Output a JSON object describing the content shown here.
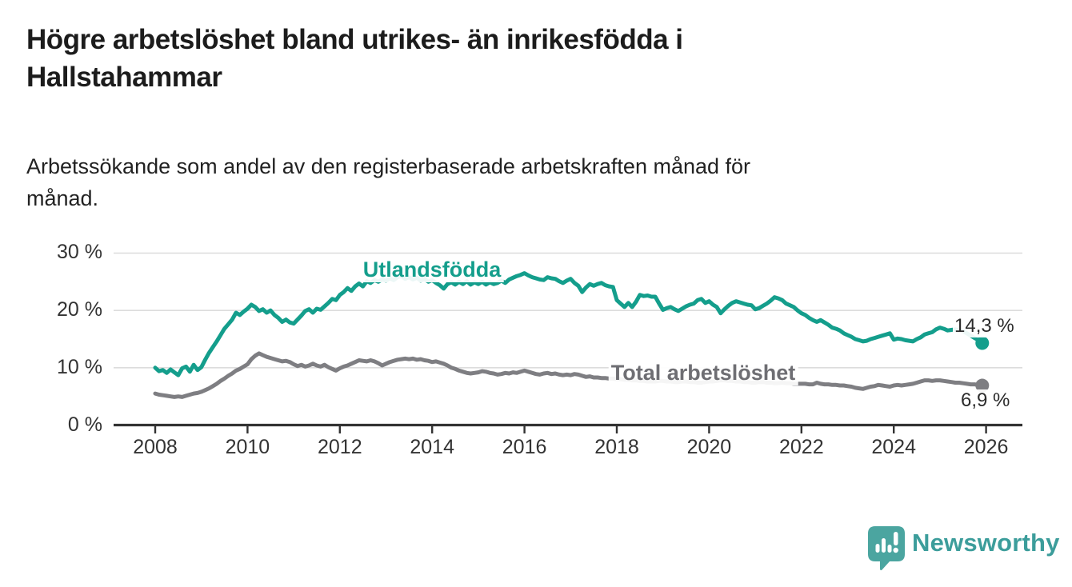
{
  "header": {
    "title_line1": "Högre arbetslöshet bland utrikes- än inrikesfödda i",
    "title_line2": "Hallstahammar",
    "subtitle_line1": "Arbetssökande som andel av den registerbaserade arbetskraften månad för",
    "subtitle_line2": "månad."
  },
  "footer": {
    "brand": "Newsworthy",
    "logo_icon": "speech-bubble-with-bar-chart-and-exclamation"
  },
  "colors": {
    "series_utlandsfodda": "#149e8c",
    "series_total": "#7e7e82",
    "axis": "#333333",
    "gridline": "#dcdcdc",
    "title_text": "#1c1c1c",
    "logo_teal": "#4ba5a0"
  },
  "chart_data": {
    "type": "line",
    "title": "Högre arbetslöshet bland utrikes- än inrikesfödda i Hallstahammar",
    "subtitle": "Arbetssökande som andel av den registerbaserade arbetskraften månad för månad.",
    "xlabel": "",
    "ylabel": "",
    "x_unit": "år (månadsvisa värden)",
    "y_unit": "%",
    "x_start": 2008.0,
    "x_step_years": 0.083333,
    "xlim": [
      2007.1,
      2026.9
    ],
    "ylim": [
      0,
      32
    ],
    "grid": "horizontal",
    "legend_position": "inline-labels",
    "yticks": [
      {
        "label": "30 %",
        "value": 30
      },
      {
        "label": "20 %",
        "value": 20
      },
      {
        "label": "10 %",
        "value": 10
      },
      {
        "label": "0 %",
        "value": 0
      }
    ],
    "xticks": [
      {
        "label": "2008",
        "value": 2008
      },
      {
        "label": "2010",
        "value": 2010
      },
      {
        "label": "2012",
        "value": 2012
      },
      {
        "label": "2014",
        "value": 2014
      },
      {
        "label": "2016",
        "value": 2016
      },
      {
        "label": "2018",
        "value": 2018
      },
      {
        "label": "2020",
        "value": 2020
      },
      {
        "label": "2022",
        "value": 2022
      },
      {
        "label": "2024",
        "value": 2024
      },
      {
        "label": "2026",
        "value": 2026
      }
    ],
    "series": [
      {
        "name": "Utlandsfödda",
        "color": "#149e8c",
        "end_label": "14,3 %",
        "end_value": 14.3,
        "values": [
          10,
          9.4,
          9.6,
          9.1,
          9.7,
          9.2,
          8.7,
          9.9,
          10.2,
          9.3,
          10.5,
          9.6,
          10.1,
          11.4,
          12.6,
          13.6,
          14.6,
          15.7,
          16.8,
          17.6,
          18.4,
          19.6,
          19.2,
          19.8,
          20.3,
          21,
          20.6,
          19.9,
          20.2,
          19.6,
          20,
          19.2,
          18.7,
          18,
          18.4,
          17.9,
          17.7,
          18.4,
          19.1,
          19.9,
          20.2,
          19.6,
          20.3,
          20.1,
          20.7,
          21.3,
          22,
          21.8,
          22.7,
          23.2,
          23.9,
          23.4,
          24.2,
          24.7,
          24.2,
          25.1,
          24.8,
          25.3,
          25,
          25.4,
          25.2,
          25.6,
          25.3,
          25.8,
          26,
          25.5,
          25.8,
          25.4,
          25.7,
          25.2,
          25.5,
          25,
          25.3,
          24.8,
          24.4,
          23.8,
          24.6,
          24.9,
          24.5,
          25,
          24.6,
          25.1,
          24.5,
          24.9,
          24.6,
          25,
          24.5,
          24.9,
          24.6,
          24.8,
          25.2,
          24.8,
          25.4,
          25.7,
          26,
          26.2,
          26.5,
          26.1,
          25.8,
          25.6,
          25.4,
          25.3,
          25.8,
          25.6,
          25.5,
          25.1,
          24.8,
          25.2,
          25.5,
          24.8,
          24.3,
          23.2,
          24,
          24.6,
          24.3,
          24.6,
          24.8,
          24.4,
          24.2,
          24.1,
          21.8,
          21.2,
          20.6,
          21.3,
          20.6,
          21.5,
          22.7,
          22.5,
          22.6,
          22.4,
          22.4,
          21.2,
          20.1,
          20.4,
          20.6,
          20.2,
          19.9,
          20.3,
          20.7,
          21,
          21.2,
          21.8,
          22,
          21.3,
          21.6,
          21,
          20.6,
          19.5,
          20.2,
          20.8,
          21.3,
          21.6,
          21.4,
          21.2,
          21,
          20.9,
          20.2,
          20.4,
          20.8,
          21.2,
          21.7,
          22.3,
          22.1,
          21.8,
          21.2,
          20.9,
          20.6,
          20,
          19.5,
          19.2,
          18.7,
          18.3,
          18,
          18.3,
          17.9,
          17.5,
          17,
          16.8,
          16.5,
          16,
          15.7,
          15.4,
          15,
          14.8,
          14.6,
          14.7,
          15,
          15.2,
          15.4,
          15.6,
          15.8,
          16,
          14.9,
          15.1,
          15,
          14.8,
          14.7,
          14.6,
          15,
          15.3,
          15.8,
          16,
          16.2,
          16.7,
          17,
          16.8,
          16.5,
          16.6,
          16.7,
          16.5,
          16.4,
          16,
          15.6,
          15.2,
          14.8,
          14.3
        ]
      },
      {
        "name": "Total arbetslöshet",
        "color": "#7e7e82",
        "end_label": "6,9 %",
        "end_value": 6.9,
        "values": [
          5.5,
          5.3,
          5.2,
          5.1,
          5,
          4.9,
          5,
          4.9,
          5.1,
          5.3,
          5.5,
          5.6,
          5.8,
          6.1,
          6.4,
          6.8,
          7.2,
          7.7,
          8.1,
          8.6,
          9,
          9.5,
          9.8,
          10.2,
          10.6,
          11.5,
          12.1,
          12.5,
          12.2,
          11.9,
          11.7,
          11.5,
          11.3,
          11.1,
          11.2,
          11,
          10.6,
          10.3,
          10.5,
          10.2,
          10.4,
          10.7,
          10.4,
          10.2,
          10.5,
          10.1,
          9.8,
          9.5,
          9.9,
          10.2,
          10.4,
          10.7,
          11,
          11.3,
          11.2,
          11.1,
          11.3,
          11.1,
          10.8,
          10.4,
          10.7,
          11,
          11.2,
          11.4,
          11.5,
          11.6,
          11.5,
          11.6,
          11.4,
          11.5,
          11.3,
          11.2,
          11,
          11.1,
          10.9,
          10.7,
          10.4,
          10,
          9.8,
          9.5,
          9.3,
          9.1,
          9,
          9.1,
          9.2,
          9.4,
          9.3,
          9.1,
          9,
          8.8,
          8.9,
          9.1,
          9,
          9.2,
          9.1,
          9.3,
          9.5,
          9.3,
          9.1,
          8.9,
          8.8,
          9,
          9.1,
          8.9,
          9,
          8.8,
          8.7,
          8.8,
          8.7,
          8.9,
          8.8,
          8.6,
          8.4,
          8.5,
          8.3,
          8.3,
          8.2,
          8.2,
          8.1,
          8.1,
          8,
          8,
          7.9,
          7.9,
          7.8,
          7.8,
          7.7,
          7.7,
          7.6,
          7.6,
          7.6,
          7.7,
          7.7,
          7.6,
          7.6,
          7.5,
          7.5,
          7.6,
          7.6,
          7.5,
          7.5,
          7.4,
          7.4,
          7.5,
          7.6,
          7.6,
          7.7,
          7.8,
          7.8,
          7.7,
          7.7,
          7.6,
          7.6,
          7.5,
          7.5,
          7.4,
          7.4,
          7.5,
          7.5,
          7.4,
          7.4,
          7.3,
          7.3,
          7.4,
          7.3,
          7.3,
          7.2,
          7.2,
          7.2,
          7.2,
          7.1,
          7.1,
          7.4,
          7.2,
          7.1,
          7.1,
          7,
          7,
          6.9,
          6.9,
          6.8,
          6.7,
          6.5,
          6.4,
          6.3,
          6.5,
          6.7,
          6.8,
          7,
          6.9,
          6.8,
          6.7,
          6.9,
          7,
          6.9,
          7,
          7.1,
          7.2,
          7.4,
          7.6,
          7.8,
          7.8,
          7.7,
          7.8,
          7.8,
          7.7,
          7.6,
          7.5,
          7.4,
          7.4,
          7.3,
          7.2,
          7.1,
          7.1,
          7,
          6.9
        ]
      }
    ]
  }
}
